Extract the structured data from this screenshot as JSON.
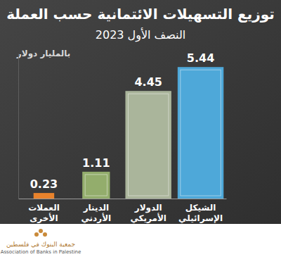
{
  "chart_data": {
    "type": "bar",
    "title": "توزيع التسهيلات الائتمانية حسب العملة",
    "subtitle": "النصف الأول 2023",
    "y_label": "بالمليار دولار",
    "categories": [
      "العملات الأخرى",
      "الدينار الأردني",
      "الدولار الأمريكي",
      "الشيكل الإسرائيلي"
    ],
    "values": [
      0.23,
      1.11,
      4.45,
      5.44
    ],
    "colors": [
      "#e8822c",
      "#93ad6c",
      "#aab59b",
      "#4ea8d9"
    ],
    "ylim": [
      0,
      6
    ],
    "data_labels": true,
    "tick_labels": "x",
    "grid": false,
    "annotations": [
      "جمعية البنوك في فلسطين",
      "Association of Banks in Palestine"
    ]
  }
}
